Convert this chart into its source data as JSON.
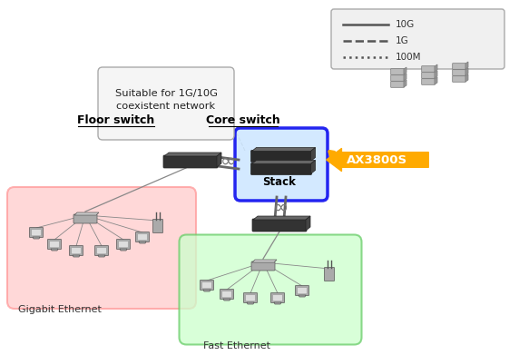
{
  "bg_color": "#ffffff",
  "callout_text": "Suitable for 1G/10G\ncoexistent network",
  "core_switch_label": "Core switch",
  "stack_label": "Stack",
  "ax3800_label": "AX3800S",
  "floor_switch_label": "Floor switch",
  "gigabit_label": "Gigabit Ethernet",
  "fast_label": "Fast Ethernet",
  "gigabit_box_color": "#ffcccc",
  "gigabit_box_edge": "#ff9999",
  "fast_box_color": "#ccffcc",
  "fast_box_edge": "#66cc66",
  "stack_box_color": "#cce6ff",
  "stack_box_border": "#0000ee",
  "ax3800_color": "#ffaa00",
  "legend_items": [
    [
      "10G",
      "-"
    ],
    [
      "1G",
      "--"
    ],
    [
      "100M",
      ":"
    ]
  ],
  "switch_color": "#2a2a2a",
  "switch_body": "#333333",
  "switch_top": "#666666",
  "switch_right": "#444444",
  "pc_color": "#aaaaaa",
  "hub_color": "#aaaaaa",
  "server_color": "#bbbbbb",
  "wire_color": "#666666"
}
